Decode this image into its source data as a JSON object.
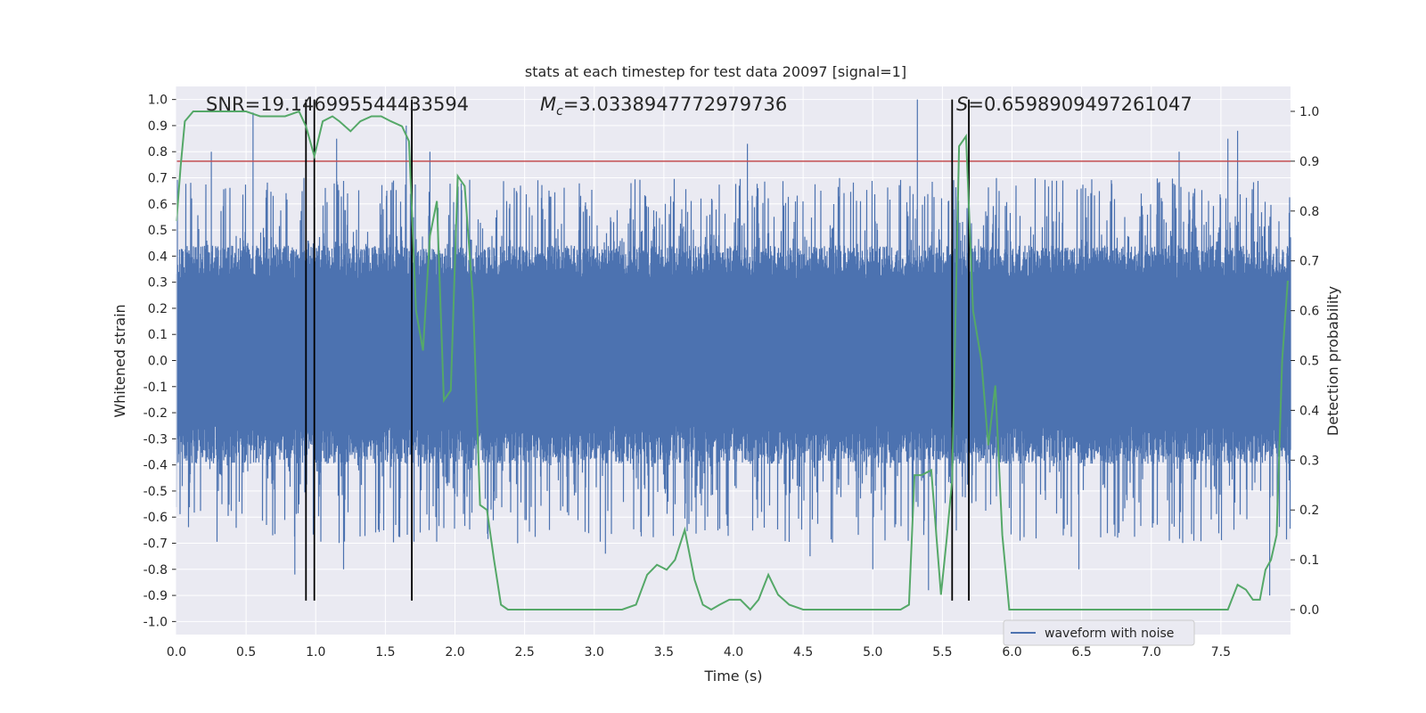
{
  "chart_data": {
    "type": "line",
    "title": "stats at each timestep for test data 20097 [signal=1]",
    "xlabel": "Time (s)",
    "ylabel": "Whitened strain",
    "y2label": "Detection probability",
    "xlim": [
      0.0,
      8.0
    ],
    "ylim": [
      -1.05,
      1.05
    ],
    "y2lim": [
      -0.05,
      1.05
    ],
    "x_ticks": [
      0.0,
      0.5,
      1.0,
      1.5,
      2.0,
      2.5,
      3.0,
      3.5,
      4.0,
      4.5,
      5.0,
      5.5,
      6.0,
      6.5,
      7.0,
      7.5
    ],
    "y_ticks": [
      -1.0,
      -0.9,
      -0.8,
      -0.7,
      -0.6,
      -0.5,
      -0.4,
      -0.3,
      -0.2,
      -0.1,
      0.0,
      0.1,
      0.2,
      0.3,
      0.4,
      0.5,
      0.6,
      0.7,
      0.8,
      0.9,
      1.0
    ],
    "y2_ticks": [
      0.0,
      0.1,
      0.2,
      0.3,
      0.4,
      0.5,
      0.6,
      0.7,
      0.8,
      0.9,
      1.0
    ],
    "annotations": {
      "snr": "SNR=19.146995544433594",
      "mc_symbol": "M",
      "mc_sub": "c",
      "mc_value": "=3.0338947772979736",
      "s_symbol": "S",
      "s_value": "=0.6598909497261047"
    },
    "threshold_y2": 0.9,
    "vertical_lines_x": [
      0.93,
      0.99,
      1.69,
      5.57,
      5.69
    ],
    "vertical_lines_range_y": [
      -0.92,
      1.0
    ],
    "legend": {
      "entry": "waveform with noise",
      "loc": "lower-right"
    },
    "series": [
      {
        "name": "waveform with noise",
        "kind": "noise-envelope",
        "dense_range": [
          -0.33,
          0.42
        ],
        "outer_range": [
          -0.7,
          0.7
        ]
      },
      {
        "kind": "detection-probability",
        "x": [
          0.0,
          0.03,
          0.06,
          0.12,
          0.2,
          0.3,
          0.4,
          0.5,
          0.6,
          0.7,
          0.78,
          0.88,
          0.93,
          0.99,
          1.05,
          1.12,
          1.17,
          1.25,
          1.32,
          1.4,
          1.47,
          1.54,
          1.62,
          1.67,
          1.72,
          1.77,
          1.82,
          1.87,
          1.92,
          1.97,
          2.02,
          2.07,
          2.13,
          2.18,
          2.23,
          2.28,
          2.33,
          2.38,
          2.43,
          2.5,
          2.6,
          2.8,
          3.0,
          3.2,
          3.3,
          3.38,
          3.45,
          3.52,
          3.58,
          3.65,
          3.72,
          3.78,
          3.84,
          3.9,
          3.97,
          4.05,
          4.12,
          4.18,
          4.25,
          4.32,
          4.4,
          4.5,
          4.6,
          4.8,
          5.0,
          5.2,
          5.26,
          5.3,
          5.35,
          5.42,
          5.49,
          5.53,
          5.57,
          5.62,
          5.67,
          5.72,
          5.78,
          5.83,
          5.88,
          5.93,
          5.98,
          6.05,
          6.2,
          6.4,
          6.6,
          6.8,
          7.0,
          7.2,
          7.4,
          7.55,
          7.62,
          7.68,
          7.73,
          7.78,
          7.82,
          7.86,
          7.9,
          7.94,
          7.98
        ],
        "y": [
          0.78,
          0.89,
          0.98,
          1.0,
          1.0,
          1.0,
          1.0,
          1.0,
          0.99,
          0.99,
          0.99,
          1.0,
          0.97,
          0.91,
          0.98,
          0.99,
          0.98,
          0.96,
          0.98,
          0.99,
          0.99,
          0.98,
          0.97,
          0.94,
          0.6,
          0.52,
          0.75,
          0.82,
          0.42,
          0.44,
          0.87,
          0.85,
          0.62,
          0.21,
          0.2,
          0.1,
          0.01,
          0.0,
          0.0,
          0.0,
          0.0,
          0.0,
          0.0,
          0.0,
          0.01,
          0.07,
          0.09,
          0.08,
          0.1,
          0.16,
          0.06,
          0.01,
          0.0,
          0.01,
          0.02,
          0.02,
          0.0,
          0.02,
          0.07,
          0.03,
          0.01,
          0.0,
          0.0,
          0.0,
          0.0,
          0.0,
          0.01,
          0.27,
          0.27,
          0.28,
          0.03,
          0.14,
          0.26,
          0.93,
          0.95,
          0.6,
          0.5,
          0.33,
          0.45,
          0.15,
          0.0,
          0.0,
          0.0,
          0.0,
          0.0,
          0.0,
          0.0,
          0.0,
          0.0,
          0.0,
          0.05,
          0.04,
          0.02,
          0.02,
          0.08,
          0.1,
          0.15,
          0.5,
          0.66
        ]
      }
    ],
    "colors": {
      "waveform": "#4c72b0",
      "probability": "#55a868",
      "threshold": "#c44e52",
      "vlines": "#000000",
      "plot_bg": "#eaeaf2",
      "grid": "#ffffff"
    }
  }
}
